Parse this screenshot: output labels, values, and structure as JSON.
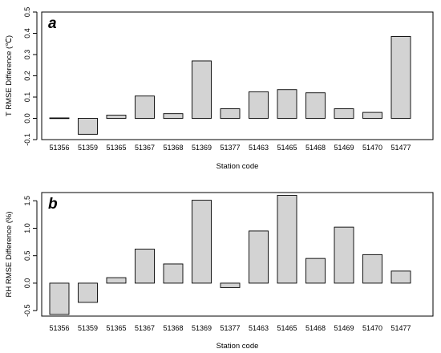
{
  "chart_data": [
    {
      "type": "bar",
      "panel_label": "a",
      "categories": [
        "51356",
        "51359",
        "51365",
        "51367",
        "51368",
        "51369",
        "51377",
        "51463",
        "51465",
        "51468",
        "51469",
        "51470",
        "51477"
      ],
      "values": [
        0.002,
        -0.075,
        0.015,
        0.105,
        0.022,
        0.27,
        0.045,
        0.125,
        0.135,
        0.12,
        0.045,
        0.028,
        0.385
      ],
      "xlabel": "Station code",
      "ylabel": "T RMSE Difference (℃)",
      "ylim": [
        -0.1,
        0.5
      ],
      "yticks": [
        -0.1,
        0.0,
        0.1,
        0.2,
        0.3,
        0.4,
        0.5
      ],
      "ytick_labels": [
        "-0.1",
        "0.0",
        "0.1",
        "0.2",
        "0.3",
        "0.4",
        "0.5"
      ],
      "grid": false
    },
    {
      "type": "bar",
      "panel_label": "b",
      "categories": [
        "51356",
        "51359",
        "51365",
        "51367",
        "51368",
        "51369",
        "51377",
        "51463",
        "51465",
        "51468",
        "51469",
        "51470",
        "51477"
      ],
      "values": [
        -0.57,
        -0.35,
        0.1,
        0.62,
        0.35,
        1.51,
        -0.08,
        0.95,
        1.6,
        0.45,
        1.02,
        0.52,
        0.22
      ],
      "xlabel": "Station code",
      "ylabel": "RH RMSE Difference (%)",
      "ylim": [
        -0.6,
        1.65
      ],
      "yticks": [
        -0.5,
        0.0,
        0.5,
        1.0,
        1.5
      ],
      "ytick_labels": [
        "-0.5",
        "0.0",
        "0.5",
        "1.0",
        "1.5"
      ],
      "grid": false
    }
  ]
}
